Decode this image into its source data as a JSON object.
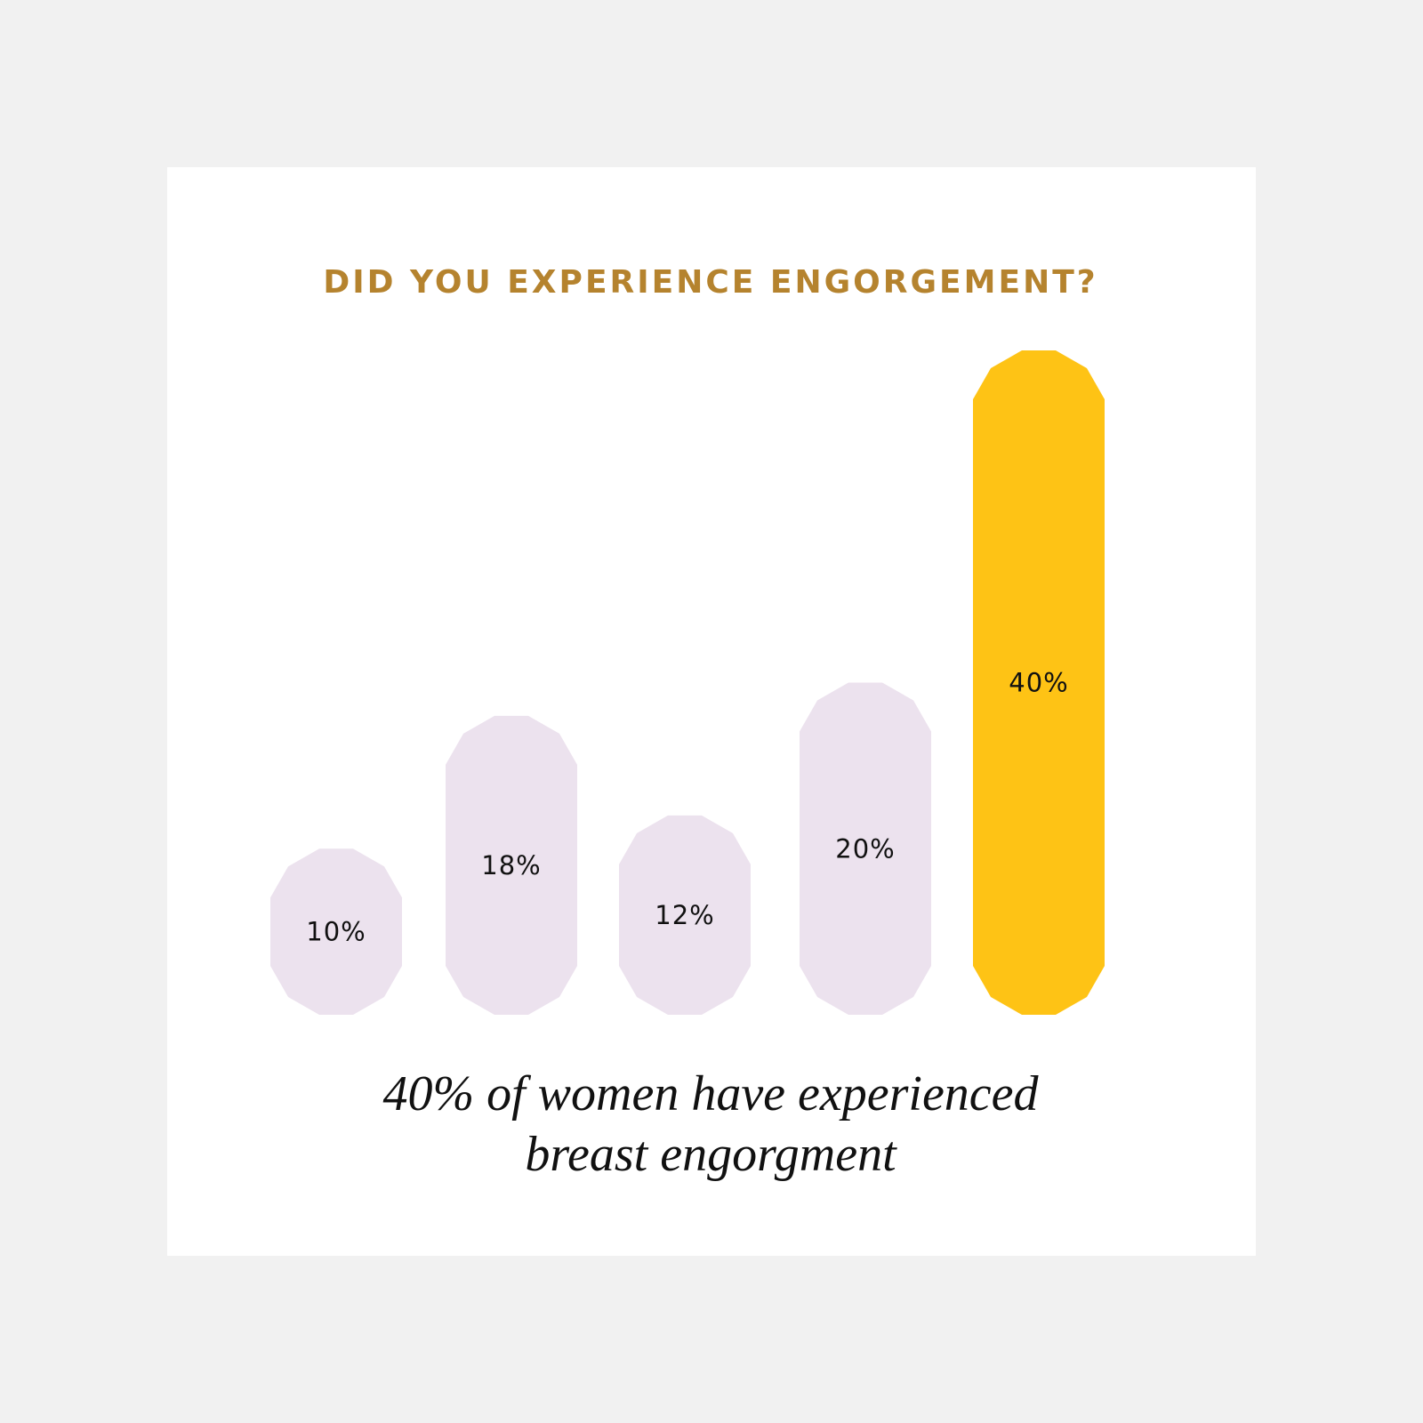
{
  "chart_data": {
    "type": "bar",
    "title": "DID YOU EXPERIENCE ENGORGEMENT?",
    "values": [
      10,
      18,
      12,
      20,
      40
    ],
    "value_labels": [
      "10%",
      "18%",
      "12%",
      "20%",
      "40%"
    ],
    "colors": [
      "#ece2ee",
      "#ece2ee",
      "#ece2ee",
      "#ece2ee",
      "#fec315"
    ],
    "caption": [
      "40% of women have experienced",
      "breast engorgment"
    ]
  }
}
